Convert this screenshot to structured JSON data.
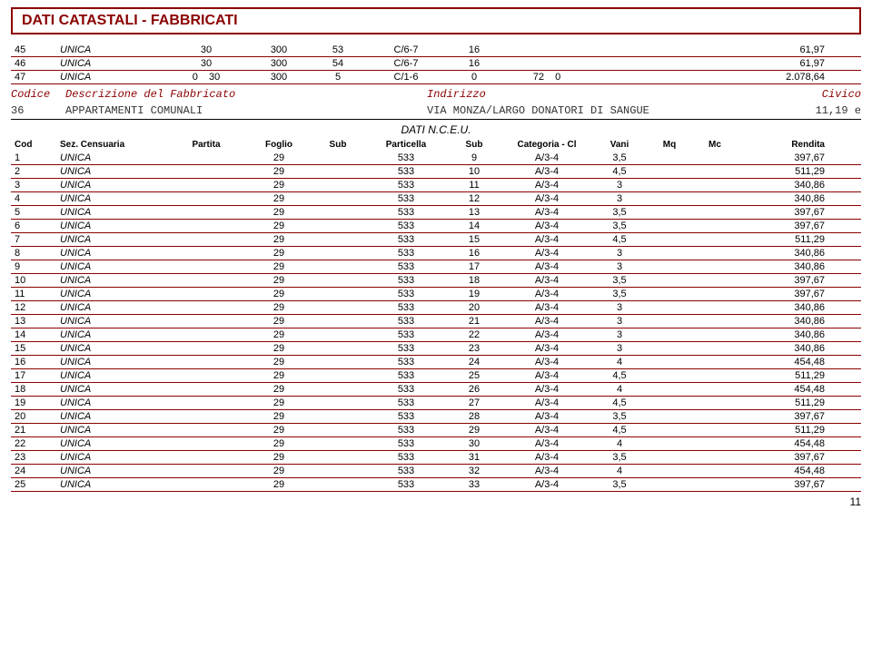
{
  "title": "DATI CATASTALI - FABBRICATI",
  "top_rows": [
    {
      "n": "45",
      "sez": "UNICA",
      "a": "30",
      "b": "300",
      "c": "53",
      "cat": "C/6-7",
      "d": "16",
      "e": "",
      "f": "61,97"
    },
    {
      "n": "46",
      "sez": "UNICA",
      "a": "30",
      "b": "300",
      "c": "54",
      "cat": "C/6-7",
      "d": "16",
      "e": "",
      "f": "61,97"
    },
    {
      "n": "47",
      "sez": "UNICA",
      "a": "0",
      "a2": "30",
      "b": "300",
      "c": "5",
      "cat": "C/1-6",
      "d": "0",
      "e": "72",
      "e2": "0",
      "f": "2.078,64"
    }
  ],
  "codice_hdr": {
    "c1": "Codice",
    "c2": "Descrizione del Fabbricato",
    "c3": "Indirizzo",
    "c4": "Civico"
  },
  "desc": {
    "d1": "36",
    "d2": "APPARTAMENTI COMUNALI",
    "d3": "VIA MONZA/LARGO DONATORI DI SANGUE",
    "d4": "11,19 e"
  },
  "nceu": "DATI N.C.E.U.",
  "headers": {
    "cod": "Cod",
    "sez": "Sez. Censuaria",
    "part": "Partita",
    "foglio": "Foglio",
    "sub1": "Sub",
    "pcel": "Particella",
    "sub2": "Sub",
    "cat": "Categoria - Cl",
    "vani": "Vani",
    "mq": "Mq",
    "mc": "Mc",
    "rend": "Rendita"
  },
  "rows": [
    {
      "cod": "1",
      "sez": "UNICA",
      "foglio": "29",
      "pcel": "533",
      "sub2": "9",
      "cat": "A/3-4",
      "vani": "3,5",
      "rend": "397,67"
    },
    {
      "cod": "2",
      "sez": "UNICA",
      "foglio": "29",
      "pcel": "533",
      "sub2": "10",
      "cat": "A/3-4",
      "vani": "4,5",
      "rend": "511,29"
    },
    {
      "cod": "3",
      "sez": "UNICA",
      "foglio": "29",
      "pcel": "533",
      "sub2": "11",
      "cat": "A/3-4",
      "vani": "3",
      "rend": "340,86"
    },
    {
      "cod": "4",
      "sez": "UNICA",
      "foglio": "29",
      "pcel": "533",
      "sub2": "12",
      "cat": "A/3-4",
      "vani": "3",
      "rend": "340,86"
    },
    {
      "cod": "5",
      "sez": "UNICA",
      "foglio": "29",
      "pcel": "533",
      "sub2": "13",
      "cat": "A/3-4",
      "vani": "3,5",
      "rend": "397,67"
    },
    {
      "cod": "6",
      "sez": "UNICA",
      "foglio": "29",
      "pcel": "533",
      "sub2": "14",
      "cat": "A/3-4",
      "vani": "3,5",
      "rend": "397,67"
    },
    {
      "cod": "7",
      "sez": "UNICA",
      "foglio": "29",
      "pcel": "533",
      "sub2": "15",
      "cat": "A/3-4",
      "vani": "4,5",
      "rend": "511,29"
    },
    {
      "cod": "8",
      "sez": "UNICA",
      "foglio": "29",
      "pcel": "533",
      "sub2": "16",
      "cat": "A/3-4",
      "vani": "3",
      "rend": "340,86"
    },
    {
      "cod": "9",
      "sez": "UNICA",
      "foglio": "29",
      "pcel": "533",
      "sub2": "17",
      "cat": "A/3-4",
      "vani": "3",
      "rend": "340,86"
    },
    {
      "cod": "10",
      "sez": "UNICA",
      "foglio": "29",
      "pcel": "533",
      "sub2": "18",
      "cat": "A/3-4",
      "vani": "3,5",
      "rend": "397,67"
    },
    {
      "cod": "11",
      "sez": "UNICA",
      "foglio": "29",
      "pcel": "533",
      "sub2": "19",
      "cat": "A/3-4",
      "vani": "3,5",
      "rend": "397,67"
    },
    {
      "cod": "12",
      "sez": "UNICA",
      "foglio": "29",
      "pcel": "533",
      "sub2": "20",
      "cat": "A/3-4",
      "vani": "3",
      "rend": "340,86"
    },
    {
      "cod": "13",
      "sez": "UNICA",
      "foglio": "29",
      "pcel": "533",
      "sub2": "21",
      "cat": "A/3-4",
      "vani": "3",
      "rend": "340,86"
    },
    {
      "cod": "14",
      "sez": "UNICA",
      "foglio": "29",
      "pcel": "533",
      "sub2": "22",
      "cat": "A/3-4",
      "vani": "3",
      "rend": "340,86"
    },
    {
      "cod": "15",
      "sez": "UNICA",
      "foglio": "29",
      "pcel": "533",
      "sub2": "23",
      "cat": "A/3-4",
      "vani": "3",
      "rend": "340,86"
    },
    {
      "cod": "16",
      "sez": "UNICA",
      "foglio": "29",
      "pcel": "533",
      "sub2": "24",
      "cat": "A/3-4",
      "vani": "4",
      "rend": "454,48"
    },
    {
      "cod": "17",
      "sez": "UNICA",
      "foglio": "29",
      "pcel": "533",
      "sub2": "25",
      "cat": "A/3-4",
      "vani": "4,5",
      "rend": "511,29"
    },
    {
      "cod": "18",
      "sez": "UNICA",
      "foglio": "29",
      "pcel": "533",
      "sub2": "26",
      "cat": "A/3-4",
      "vani": "4",
      "rend": "454,48"
    },
    {
      "cod": "19",
      "sez": "UNICA",
      "foglio": "29",
      "pcel": "533",
      "sub2": "27",
      "cat": "A/3-4",
      "vani": "4,5",
      "rend": "511,29"
    },
    {
      "cod": "20",
      "sez": "UNICA",
      "foglio": "29",
      "pcel": "533",
      "sub2": "28",
      "cat": "A/3-4",
      "vani": "3,5",
      "rend": "397,67"
    },
    {
      "cod": "21",
      "sez": "UNICA",
      "foglio": "29",
      "pcel": "533",
      "sub2": "29",
      "cat": "A/3-4",
      "vani": "4,5",
      "rend": "511,29"
    },
    {
      "cod": "22",
      "sez": "UNICA",
      "foglio": "29",
      "pcel": "533",
      "sub2": "30",
      "cat": "A/3-4",
      "vani": "4",
      "rend": "454,48"
    },
    {
      "cod": "23",
      "sez": "UNICA",
      "foglio": "29",
      "pcel": "533",
      "sub2": "31",
      "cat": "A/3-4",
      "vani": "3,5",
      "rend": "397,67"
    },
    {
      "cod": "24",
      "sez": "UNICA",
      "foglio": "29",
      "pcel": "533",
      "sub2": "32",
      "cat": "A/3-4",
      "vani": "4",
      "rend": "454,48"
    },
    {
      "cod": "25",
      "sez": "UNICA",
      "foglio": "29",
      "pcel": "533",
      "sub2": "33",
      "cat": "A/3-4",
      "vani": "3,5",
      "rend": "397,67"
    }
  ],
  "pagenum": "11"
}
